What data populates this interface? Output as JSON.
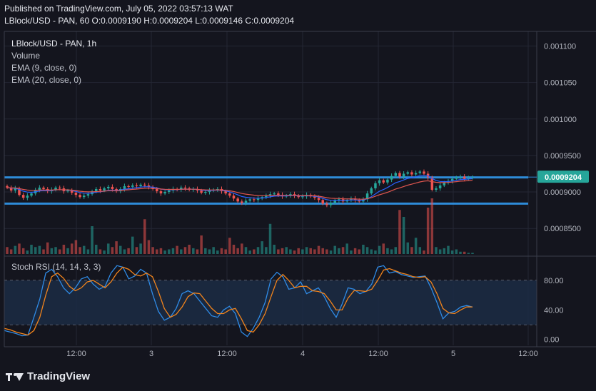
{
  "header": {
    "published": "Published on TradingView.com, July 05, 2022 03:57:13 WAT",
    "symbol_line": "LBlock/USD - PAN, 60 O:0.0009190 H:0.0009204 L:0.0009146 C:0.0009204"
  },
  "legend": {
    "title": "LBlock/USD - PAN, 1h",
    "volume": "Volume",
    "ema9": "EMA (9, close, 0)",
    "ema20": "EMA (20, close, 0)",
    "stoch": "Stoch RSI (14, 14, 3, 3)"
  },
  "branding": {
    "logo_text": "TradingView"
  },
  "colors": {
    "background": "#14151e",
    "up": "#26a69a",
    "down": "#ef5350",
    "ema9": "#2962ff",
    "ema20": "#e0564f",
    "level_lines": "#2e8bd8",
    "k_line": "#2f8be6",
    "d_line": "#f2841c",
    "rsi_band": "#1b2b44",
    "price_tag": "#26a69a"
  },
  "chart_data": [
    {
      "type": "candlestick",
      "title": "LBlock/USD - PAN, 1h",
      "x_ticks": [
        "12:00",
        "3",
        "12:00",
        "4",
        "12:00",
        "5",
        "12:00"
      ],
      "y_ticks": [
        "0.001100",
        "0.001050",
        "0.001000",
        "0.0009500",
        "0.0009000",
        "0.0008500"
      ],
      "ylim": [
        0.000815,
        0.00112
      ],
      "current_price": "0.0009204",
      "horizontal_levels": [
        0.00092,
        0.000884
      ],
      "series_close": [
        0.000906,
        0.000902,
        0.000905,
        0.000896,
        0.000892,
        0.000895,
        0.000898,
        0.000903,
        0.000906,
        0.000904,
        0.000901,
        0.000903,
        0.000906,
        0.000905,
        0.000901,
        0.000902,
        0.000899,
        0.000896,
        0.000893,
        0.000895,
        0.000897,
        0.000901,
        0.000904,
        0.000902,
        0.000905,
        0.000907,
        0.000904,
        0.000901,
        0.000904,
        0.000908,
        0.000907,
        0.000909,
        0.000908,
        0.00091,
        0.000909,
        0.000907,
        0.000904,
        0.000901,
        0.000898,
        0.0009,
        0.000902,
        0.000904,
        0.000903,
        0.000906,
        0.000905,
        0.000903,
        0.000904,
        0.000902,
        0.000899,
        0.0009,
        0.000902,
        0.000903,
        0.000904,
        0.000901,
        0.000898,
        0.000895,
        0.000891,
        0.000887,
        0.000885,
        0.000888,
        0.00089,
        0.000889,
        0.000891,
        0.000893,
        0.000895,
        0.000897,
        0.000898,
        0.000896,
        0.000894,
        0.000895,
        0.000897,
        0.000895,
        0.000893,
        0.000894,
        0.000896,
        0.000894,
        0.000892,
        0.000889,
        0.000884,
        0.000882,
        0.000885,
        0.000888,
        0.00089,
        0.000887,
        0.000889,
        0.000891,
        0.000889,
        0.000887,
        0.00089,
        0.000898,
        0.000905,
        0.000912,
        0.000916,
        0.000913,
        0.000917,
        0.000922,
        0.000926,
        0.000921,
        0.000925,
        0.000927,
        0.000924,
        0.000926,
        0.000928,
        0.000925,
        0.00092,
        0.000903,
        0.000905,
        0.000909,
        0.000913,
        0.000915,
        0.000918,
        0.00092,
        0.000921,
        0.000918,
        0.00092,
        0.00092
      ],
      "volume": [
        6,
        4,
        7,
        9,
        5,
        3,
        8,
        6,
        7,
        4,
        10,
        5,
        6,
        4,
        8,
        5,
        9,
        12,
        6,
        7,
        4,
        24,
        8,
        4,
        3,
        9,
        6,
        11,
        7,
        4,
        5,
        15,
        6,
        9,
        30,
        12,
        6,
        4,
        5,
        3,
        4,
        5,
        7,
        4,
        6,
        8,
        5,
        4,
        16,
        5,
        4,
        6,
        3,
        5,
        4,
        14,
        8,
        5,
        9,
        6,
        3,
        4,
        6,
        11,
        6,
        26,
        8,
        4,
        5,
        6,
        4,
        3,
        5,
        4,
        6,
        5,
        4,
        7,
        5,
        4,
        3,
        7,
        5,
        6,
        9,
        3,
        5,
        4,
        8,
        6,
        4,
        3,
        7,
        9,
        5,
        4,
        6,
        38,
        32,
        10,
        6,
        14,
        6,
        3,
        40,
        48,
        6,
        4,
        5,
        7,
        3,
        4,
        2,
        2,
        1,
        1
      ]
    },
    {
      "type": "line",
      "title": "Stoch RSI (14, 14, 3, 3)",
      "y_ticks": [
        "80.00",
        "40.00",
        "0.00"
      ],
      "ylim": [
        -8,
        110
      ],
      "band": [
        20,
        80
      ],
      "series": [
        {
          "name": "K",
          "values": [
            12,
            10,
            8,
            5,
            6,
            30,
            55,
            90,
            95,
            85,
            70,
            62,
            70,
            82,
            85,
            75,
            68,
            72,
            90,
            100,
            98,
            82,
            86,
            95,
            90,
            62,
            38,
            26,
            30,
            42,
            62,
            66,
            62,
            52,
            42,
            32,
            30,
            40,
            45,
            35,
            10,
            4,
            15,
            30,
            50,
            82,
            91,
            85,
            68,
            70,
            78,
            62,
            66,
            70,
            58,
            42,
            30,
            48,
            70,
            68,
            62,
            65,
            75,
            98,
            100,
            90,
            92,
            88,
            86,
            84,
            85,
            86,
            70,
            50,
            28,
            36,
            38,
            44,
            46,
            44
          ]
        },
        {
          "name": "D",
          "values": [
            15,
            13,
            10,
            8,
            6,
            12,
            30,
            60,
            85,
            90,
            83,
            72,
            66,
            70,
            78,
            80,
            75,
            70,
            78,
            90,
            98,
            95,
            88,
            86,
            90,
            85,
            65,
            42,
            30,
            34,
            44,
            58,
            63,
            62,
            52,
            42,
            35,
            35,
            40,
            42,
            28,
            12,
            10,
            20,
            35,
            58,
            80,
            88,
            80,
            70,
            72,
            72,
            66,
            65,
            62,
            52,
            40,
            40,
            56,
            66,
            66,
            65,
            68,
            80,
            94,
            96,
            93,
            90,
            88,
            85,
            84,
            85,
            78,
            62,
            42,
            36,
            35,
            40,
            44,
            44
          ]
        }
      ]
    }
  ]
}
